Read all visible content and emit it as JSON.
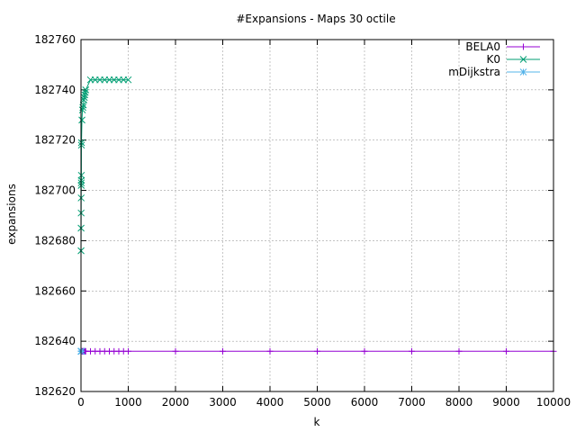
{
  "chart_data": {
    "type": "line",
    "title": "#Expansions - Maps 30 octile",
    "xlabel": "k",
    "ylabel": "expansions",
    "xlim": [
      0,
      10000
    ],
    "ylim": [
      182620,
      182760
    ],
    "xticks": [
      0,
      1000,
      2000,
      3000,
      4000,
      5000,
      6000,
      7000,
      8000,
      9000,
      10000
    ],
    "yticks": [
      182620,
      182640,
      182660,
      182680,
      182700,
      182720,
      182740,
      182760
    ],
    "grid": true,
    "legend_position": "top-right",
    "series": [
      {
        "name": "BELA0",
        "color": "#9400d3",
        "marker": "plus",
        "x": [
          1,
          2,
          3,
          4,
          5,
          6,
          7,
          8,
          9,
          10,
          20,
          30,
          40,
          50,
          60,
          70,
          80,
          90,
          100,
          200,
          300,
          400,
          500,
          600,
          700,
          800,
          900,
          1000,
          2000,
          3000,
          4000,
          5000,
          6000,
          7000,
          8000,
          9000,
          10000
        ],
        "y": [
          182636,
          182636,
          182636,
          182636,
          182636,
          182636,
          182636,
          182636,
          182636,
          182636,
          182636,
          182636,
          182636,
          182636,
          182636,
          182636,
          182636,
          182636,
          182636,
          182636,
          182636,
          182636,
          182636,
          182636,
          182636,
          182636,
          182636,
          182636,
          182636,
          182636,
          182636,
          182636,
          182636,
          182636,
          182636,
          182636,
          182636
        ]
      },
      {
        "name": "K0",
        "color": "#009e73",
        "marker": "cross",
        "x": [
          1,
          2,
          3,
          4,
          5,
          6,
          7,
          8,
          9,
          10,
          20,
          30,
          40,
          50,
          60,
          70,
          80,
          90,
          100,
          200,
          300,
          400,
          500,
          600,
          700,
          800,
          900,
          1000
        ],
        "y": [
          182676,
          182685,
          182691,
          182697,
          182702,
          182703,
          182704,
          182706,
          182718,
          182719,
          182728,
          182732,
          182733,
          182734,
          182736,
          182737,
          182738,
          182739,
          182740,
          182744,
          182744,
          182744,
          182744,
          182744,
          182744,
          182744,
          182744,
          182744
        ]
      },
      {
        "name": "mDijkstra",
        "color": "#56b4e9",
        "marker": "star",
        "x": [
          1,
          2,
          3,
          4,
          5,
          6,
          7,
          8,
          9,
          10
        ],
        "y": [
          182636,
          182636,
          182636,
          182636,
          182636,
          182636,
          182636,
          182636,
          182636,
          182636
        ]
      }
    ]
  }
}
